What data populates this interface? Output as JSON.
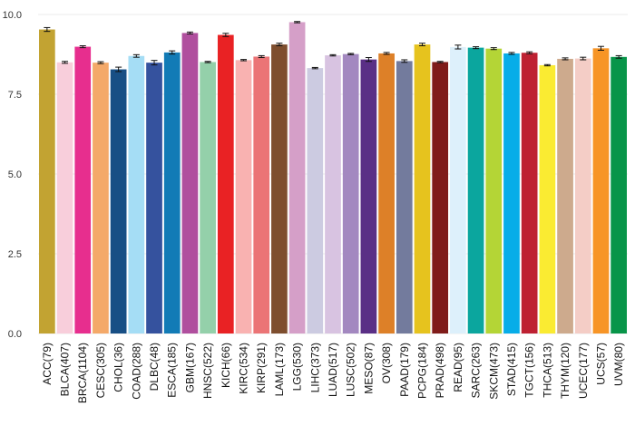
{
  "chart_data": {
    "type": "bar",
    "title": "",
    "xlabel": "",
    "ylabel": "",
    "ylim": [
      0,
      10
    ],
    "yticks": [
      0.0,
      2.5,
      5.0,
      7.5,
      10.0
    ],
    "ytick_labels": [
      "0.0",
      "2.5",
      "5.0",
      "7.5",
      "10.0"
    ],
    "grid": "horizontal",
    "legend": "none",
    "categories": [
      "ACC(79)",
      "BLCA(407)",
      "BRCA(1104)",
      "CESC(305)",
      "CHOL(36)",
      "COAD(288)",
      "DLBC(48)",
      "ESCA(185)",
      "GBM(167)",
      "HNSC(522)",
      "KICH(66)",
      "KIRC(534)",
      "KIRP(291)",
      "LAML(173)",
      "LGG(530)",
      "LIHC(373)",
      "LUAD(517)",
      "LUSC(502)",
      "MESO(87)",
      "OV(308)",
      "PAAD(179)",
      "PCPG(184)",
      "PRAD(498)",
      "READ(95)",
      "SARC(263)",
      "SKCM(473)",
      "STAD(415)",
      "TGCT(156)",
      "THCA(513)",
      "THYM(120)",
      "UCEC(177)",
      "UCS(57)",
      "UVM(80)"
    ],
    "values": [
      9.53,
      8.5,
      8.99,
      8.49,
      8.28,
      8.7,
      8.49,
      8.81,
      9.42,
      8.51,
      9.36,
      8.57,
      8.68,
      9.06,
      9.76,
      8.32,
      8.72,
      8.76,
      8.59,
      8.78,
      8.54,
      9.06,
      8.51,
      8.98,
      8.96,
      8.93,
      8.78,
      8.8,
      8.41,
      8.61,
      8.62,
      8.94,
      8.67
    ],
    "errors": [
      0.06,
      0.03,
      0.03,
      0.03,
      0.07,
      0.04,
      0.07,
      0.05,
      0.03,
      0.02,
      0.05,
      0.02,
      0.03,
      0.04,
      0.02,
      0.02,
      0.02,
      0.02,
      0.06,
      0.03,
      0.04,
      0.04,
      0.02,
      0.06,
      0.03,
      0.03,
      0.03,
      0.03,
      0.02,
      0.03,
      0.04,
      0.06,
      0.04
    ],
    "colors": [
      "#C2A332",
      "#F8CEDB",
      "#E72E8E",
      "#F4A969",
      "#184F85",
      "#A5DDF5",
      "#35529E",
      "#127BB6",
      "#B04F9E",
      "#94D0AA",
      "#E92224",
      "#F9B2B1",
      "#EB7476",
      "#7E4E2E",
      "#D59FC8",
      "#CCCBE1",
      "#D8C3E1",
      "#A388C0",
      "#5A2F86",
      "#DD8028",
      "#737B9D",
      "#E6C31E",
      "#801C1A",
      "#DDF0FB",
      "#0BA69E",
      "#B4D536",
      "#07ADE8",
      "#BE2132",
      "#FAEB32",
      "#CDAA8D",
      "#F4CDC6",
      "#F79526",
      "#089549"
    ]
  }
}
